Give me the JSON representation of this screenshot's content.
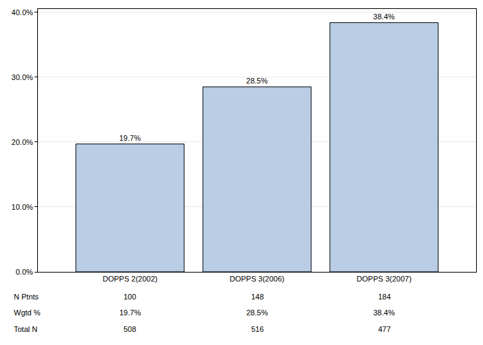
{
  "chart_data": {
    "type": "bar",
    "categories": [
      "DOPPS 2(2002)",
      "DOPPS 3(2006)",
      "DOPPS 3(2007)"
    ],
    "values": [
      19.7,
      28.5,
      38.4
    ],
    "value_labels": [
      "19.7%",
      "28.5%",
      "38.4%"
    ],
    "data_labels": true,
    "color": "#b9cde5",
    "ylim": [
      0,
      40.5
    ],
    "yticks": [
      {
        "value": 0,
        "label": "0.0%"
      },
      {
        "value": 10,
        "label": "10.0%"
      },
      {
        "value": 20,
        "label": "20.0%"
      },
      {
        "value": 30,
        "label": "30.0%"
      },
      {
        "value": 40,
        "label": "40.0%"
      }
    ],
    "grid": true,
    "table": {
      "rows": [
        {
          "label": "N Ptnts",
          "values": [
            "100",
            "148",
            "184"
          ]
        },
        {
          "label": "Wgtd %",
          "values": [
            "19.7%",
            "28.5%",
            "38.4%"
          ]
        },
        {
          "label": "Total N",
          "values": [
            "508",
            "516",
            "477"
          ]
        }
      ]
    }
  }
}
